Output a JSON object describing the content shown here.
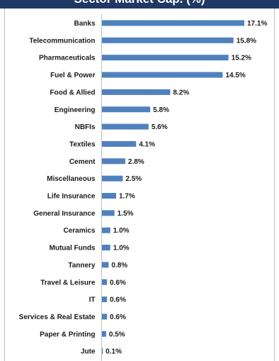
{
  "chart_data": {
    "type": "bar",
    "orientation": "horizontal",
    "title": "Sector Market Cap. (%)",
    "categories": [
      "Banks",
      "Telecommunication",
      "Pharmaceuticals",
      "Fuel & Power",
      "Food & Allied",
      "Engineering",
      "NBFIs",
      "Textiles",
      "Cement",
      "Miscellaneous",
      "Life Insurance",
      "General Insurance",
      "Ceramics",
      "Mutual Funds",
      "Tannery",
      "Travel & Leisure",
      "IT",
      "Services & Real Estate",
      "Paper & Printing",
      "Jute"
    ],
    "values": [
      17.1,
      15.8,
      15.2,
      14.5,
      8.2,
      5.8,
      5.6,
      4.1,
      2.8,
      2.5,
      1.7,
      1.5,
      1.0,
      1.0,
      0.8,
      0.6,
      0.6,
      0.6,
      0.5,
      0.1
    ],
    "value_labels": [
      "17.1%",
      "15.8%",
      "15.2%",
      "14.5%",
      "8.2%",
      "5.8%",
      "5.6%",
      "4.1%",
      "2.8%",
      "2.5%",
      "1.7%",
      "1.5%",
      "1.0%",
      "1.0%",
      "0.8%",
      "0.6%",
      "0.6%",
      "0.6%",
      "0.5%",
      "0.1%"
    ],
    "xlim": [
      0,
      17.1
    ],
    "grid": false,
    "colors": {
      "bar": "#4f81bd",
      "axis": "#bfbfbf",
      "title_background": "#1f3864",
      "title_text": "#ffffff"
    }
  }
}
